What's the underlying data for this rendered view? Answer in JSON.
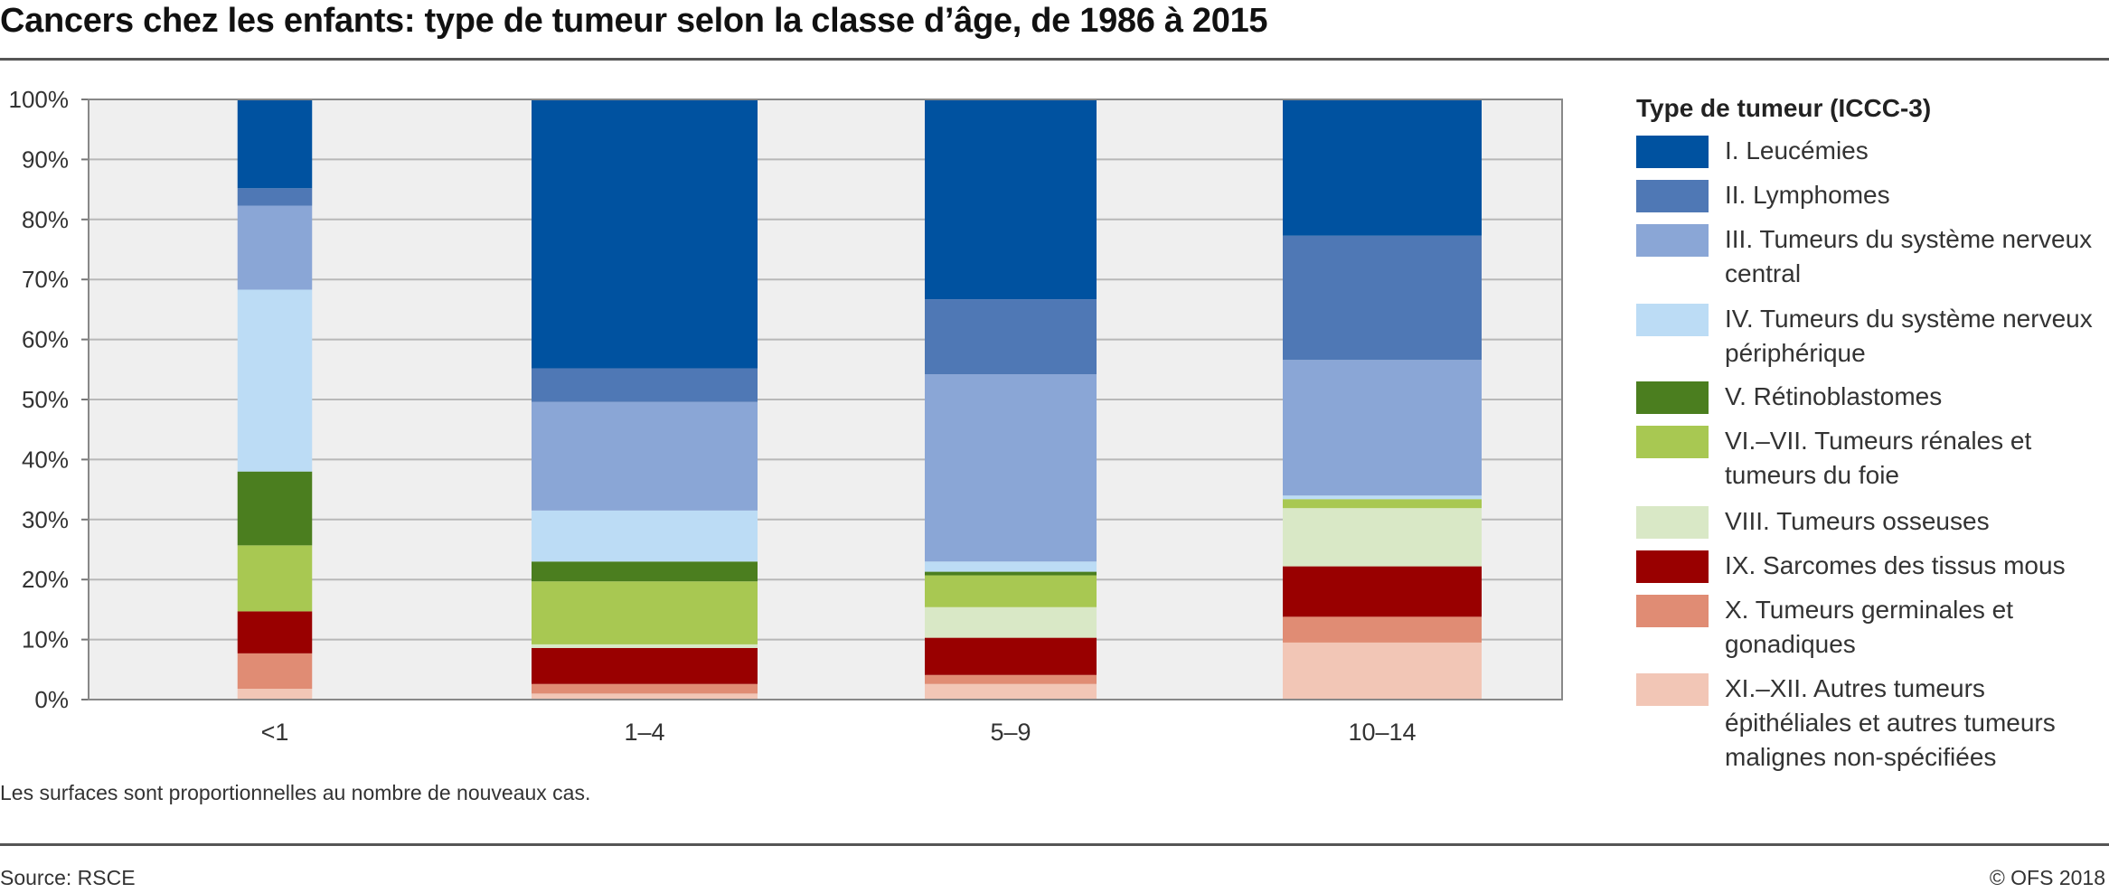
{
  "header": {
    "title": "Cancers chez les enfants: type de tumeur selon la classe d’âge, de 1986 à 2015"
  },
  "chart_data": {
    "type": "bar",
    "stacked": true,
    "title": "Cancers chez les enfants: type de tumeur selon la classe d’âge, de 1986 à 2015",
    "categories": [
      "<1",
      "1–4",
      "5–9",
      "10–14"
    ],
    "bar_width_note": "Les surfaces sont proportionnelles au nombre de nouveaux cas.",
    "relative_bar_widths": [
      0.33,
      1.0,
      0.76,
      0.88
    ],
    "ylim": [
      0,
      100
    ],
    "yticks": [
      "0%",
      "10%",
      "20%",
      "30%",
      "40%",
      "50%",
      "60%",
      "70%",
      "80%",
      "90%",
      "100%"
    ],
    "grid": true,
    "legend_position": "right",
    "legend_title": "Type de tumeur (ICCC-3)",
    "series": [
      {
        "name": "XI.–XII. Autres tumeurs épithéliales et autres tumeurs malignes non-spécifiées",
        "color": "#f2c6b6",
        "values": [
          1.8,
          1.0,
          2.6,
          9.5
        ]
      },
      {
        "name": "X. Tumeurs germinales et gonadiques",
        "color": "#e08c74",
        "values": [
          5.9,
          1.6,
          1.5,
          4.3
        ]
      },
      {
        "name": "IX. Sarcomes des tissus mous",
        "color": "#990000",
        "values": [
          7.0,
          6.0,
          6.2,
          8.4
        ]
      },
      {
        "name": "VIII. Tumeurs osseuses",
        "color": "#d9e8c6",
        "values": [
          0.0,
          0.6,
          5.1,
          9.7
        ]
      },
      {
        "name": "VI.–VII. Tumeurs rénales et tumeurs du foie",
        "color": "#a8c852",
        "values": [
          11.0,
          10.5,
          5.3,
          1.5
        ]
      },
      {
        "name": "V. Rétinoblastomes",
        "color": "#4b7e1f",
        "values": [
          12.3,
          3.3,
          0.6,
          0.0
        ]
      },
      {
        "name": "IV. Tumeurs du système nerveux périphérique",
        "color": "#bcdcf5",
        "values": [
          30.3,
          8.5,
          1.7,
          0.6
        ]
      },
      {
        "name": "III. Tumeurs du système nerveux central",
        "color": "#8aa6d6",
        "values": [
          14.0,
          18.1,
          31.2,
          22.6
        ]
      },
      {
        "name": "II. Lymphomes",
        "color": "#4f78b5",
        "values": [
          2.9,
          5.6,
          12.5,
          20.7
        ]
      },
      {
        "name": "I. Leucémies",
        "color": "#0052a0",
        "values": [
          14.8,
          44.8,
          33.3,
          22.7
        ]
      }
    ]
  },
  "legend": {
    "title": "Type de tumeur (ICCC-3)",
    "items": [
      {
        "label": "I. Leucémies",
        "color": "#0052a0"
      },
      {
        "label": "II. Lymphomes",
        "color": "#4f78b5"
      },
      {
        "label": "III. Tumeurs du système nerveux central",
        "color": "#8aa6d6"
      },
      {
        "label": "IV. Tumeurs du système nerveux périphérique",
        "color": "#bcdcf5"
      },
      {
        "label": "V. Rétinoblastomes",
        "color": "#4b7e1f"
      },
      {
        "label": "VI.–VII. Tumeurs rénales et tumeurs du foie",
        "color": "#a8c852"
      },
      {
        "label": "VIII. Tumeurs osseuses",
        "color": "#d9e8c6"
      },
      {
        "label": "IX. Sarcomes des tissus mous",
        "color": "#990000"
      },
      {
        "label": "X. Tumeurs germinales et gonadiques",
        "color": "#e08c74"
      },
      {
        "label": "XI.–XII. Autres tumeurs épithéliales et autres tumeurs malignes non-spécifiées",
        "color": "#f2c6b6"
      }
    ]
  },
  "note": "Les surfaces sont proportionnelles au nombre de nouveaux cas.",
  "footer": {
    "source": "Source: RSCE",
    "copyright": "© OFS 2018"
  }
}
